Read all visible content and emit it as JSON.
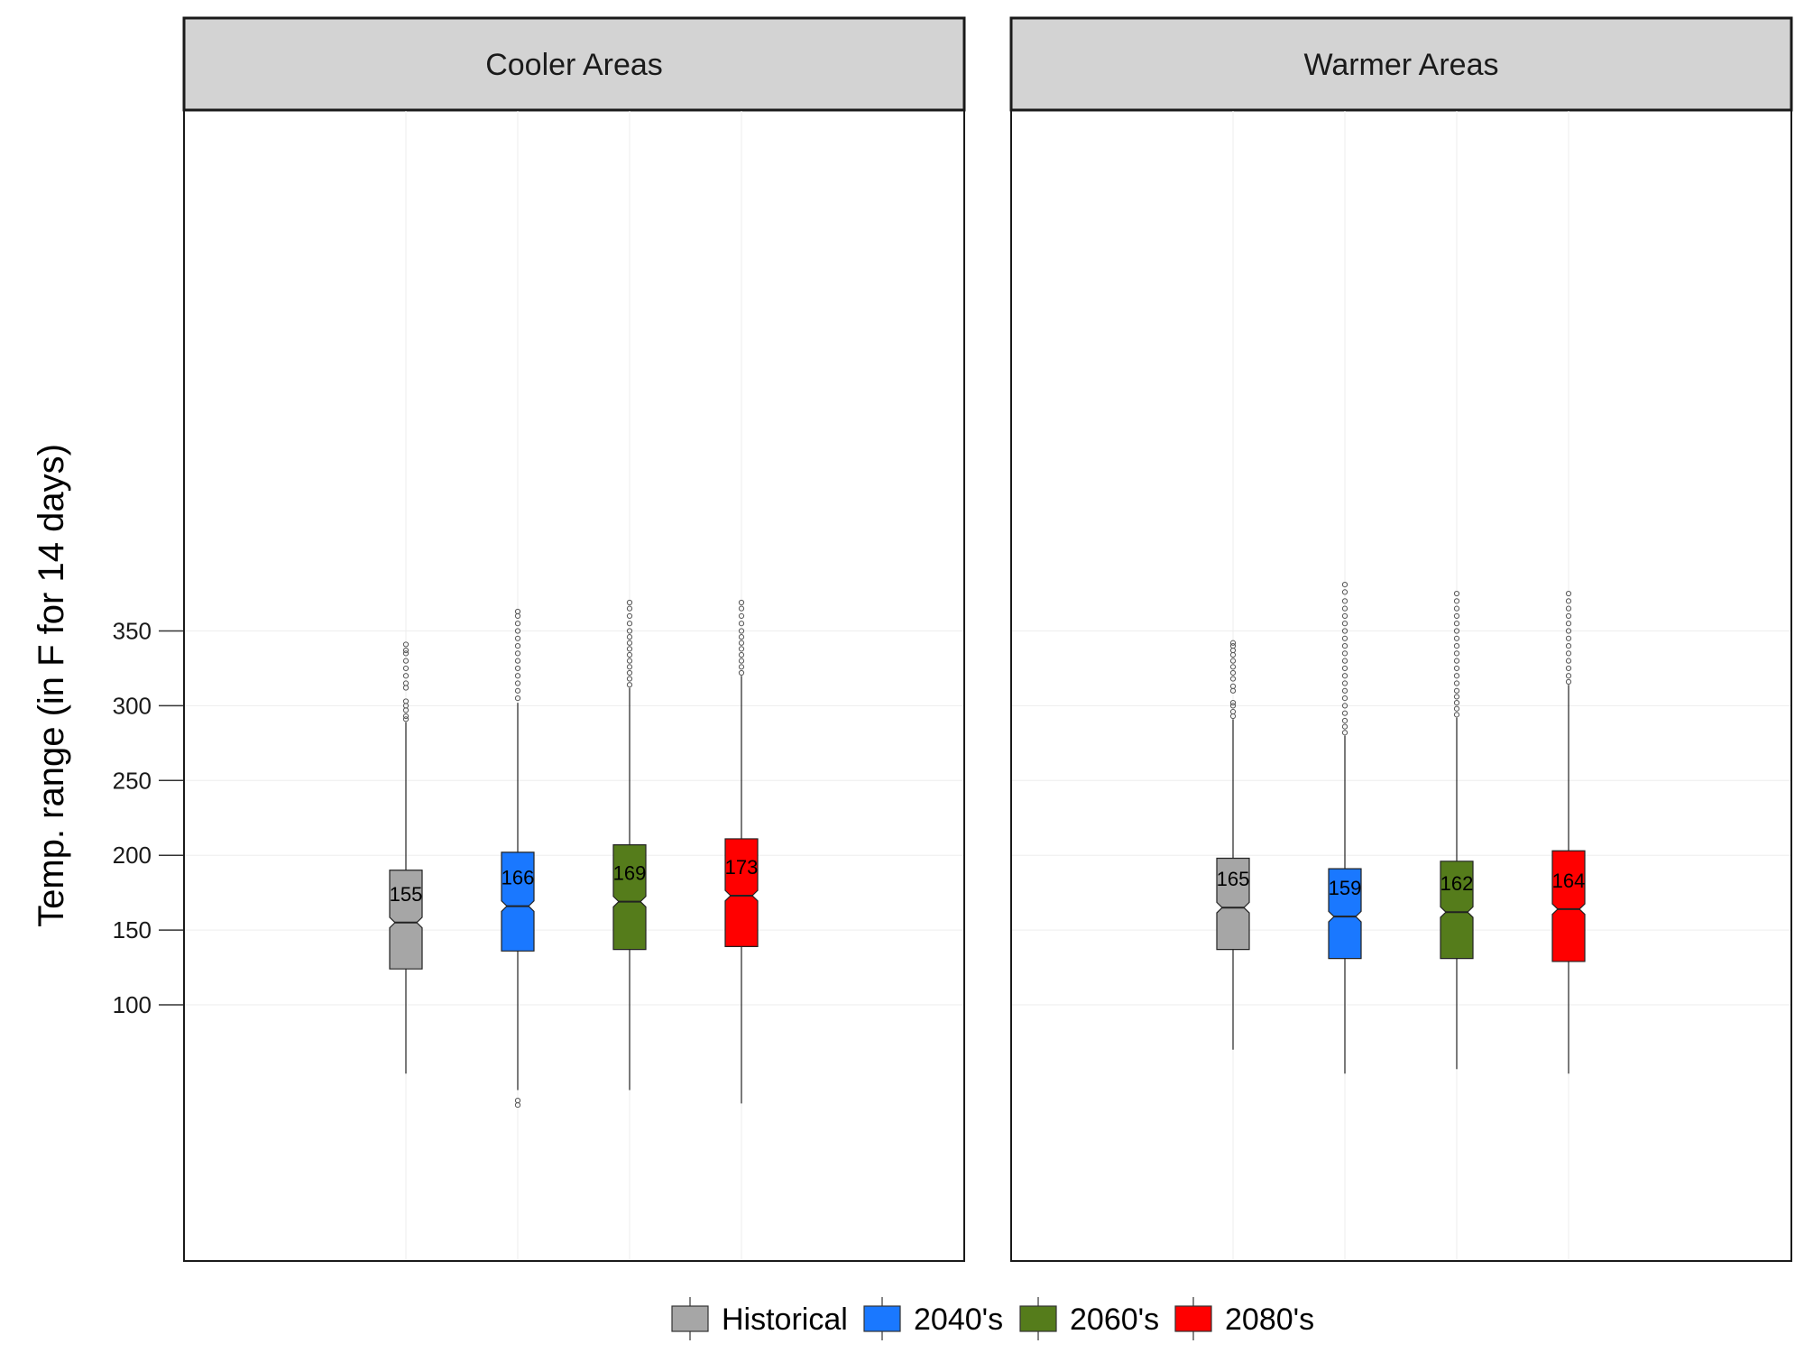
{
  "chart_data": {
    "type": "boxplot",
    "ylabel": "Temp. range (in F for 14 days)",
    "xlabel": "",
    "y_ticks": [
      100,
      150,
      200,
      250,
      300,
      350
    ],
    "ylim": [
      15,
      400
    ],
    "grid": true,
    "notched": true,
    "legend_position": "bottom",
    "legend": [
      {
        "name": "Historical",
        "color": "#a6a6a6"
      },
      {
        "name": "2040's",
        "color": "#1a78ff"
      },
      {
        "name": "2060's",
        "color": "#557c1b"
      },
      {
        "name": "2080's",
        "color": "#ff0000"
      }
    ],
    "panels": [
      {
        "title": "Cooler Areas",
        "boxes": [
          {
            "series": "Historical",
            "median": 155,
            "median_label": "155",
            "q1": 124,
            "q3": 190,
            "whisker_low": 54,
            "whisker_high": 289,
            "outliers": [
              291,
              293,
              297,
              300,
              303,
              312,
              315,
              320,
              325,
              330,
              335,
              337,
              341
            ]
          },
          {
            "series": "2040's",
            "median": 166,
            "median_label": "166",
            "q1": 136,
            "q3": 202,
            "whisker_low": 43,
            "whisker_high": 302,
            "outliers": [
              33,
              36,
              305,
              310,
              315,
              320,
              325,
              330,
              335,
              340,
              345,
              350,
              355,
              360,
              363
            ]
          },
          {
            "series": "2060's",
            "median": 169,
            "median_label": "169",
            "q1": 137,
            "q3": 207,
            "whisker_low": 43,
            "whisker_high": 312,
            "outliers": [
              314,
              318,
              322,
              326,
              330,
              334,
              338,
              342,
              346,
              350,
              355,
              360,
              365,
              369
            ]
          },
          {
            "series": "2080's",
            "median": 173,
            "median_label": "173",
            "q1": 139,
            "q3": 211,
            "whisker_low": 34,
            "whisker_high": 320,
            "outliers": [
              322,
              326,
              330,
              334,
              338,
              342,
              346,
              350,
              355,
              360,
              365,
              369
            ]
          }
        ]
      },
      {
        "title": "Warmer Areas",
        "boxes": [
          {
            "series": "Historical",
            "median": 165,
            "median_label": "165",
            "q1": 137,
            "q3": 198,
            "whisker_low": 70,
            "whisker_high": 291,
            "outliers": [
              293,
              296,
              300,
              302,
              310,
              313,
              318,
              322,
              326,
              330,
              334,
              337,
              340,
              342
            ]
          },
          {
            "series": "2040's",
            "median": 159,
            "median_label": "159",
            "q1": 131,
            "q3": 191,
            "whisker_low": 54,
            "whisker_high": 280,
            "outliers": [
              282,
              286,
              290,
              295,
              300,
              305,
              310,
              315,
              320,
              325,
              330,
              335,
              340,
              345,
              350,
              355,
              360,
              365,
              370,
              376,
              381
            ]
          },
          {
            "series": "2060's",
            "median": 162,
            "median_label": "162",
            "q1": 131,
            "q3": 196,
            "whisker_low": 57,
            "whisker_high": 292,
            "outliers": [
              294,
              298,
              302,
              306,
              310,
              315,
              320,
              325,
              330,
              335,
              340,
              345,
              350,
              355,
              360,
              365,
              370,
              375
            ]
          },
          {
            "series": "2080's",
            "median": 164,
            "median_label": "164",
            "q1": 129,
            "q3": 203,
            "whisker_low": 54,
            "whisker_high": 314,
            "outliers": [
              316,
              320,
              325,
              330,
              335,
              340,
              345,
              350,
              355,
              360,
              365,
              370,
              375
            ]
          }
        ]
      }
    ]
  }
}
